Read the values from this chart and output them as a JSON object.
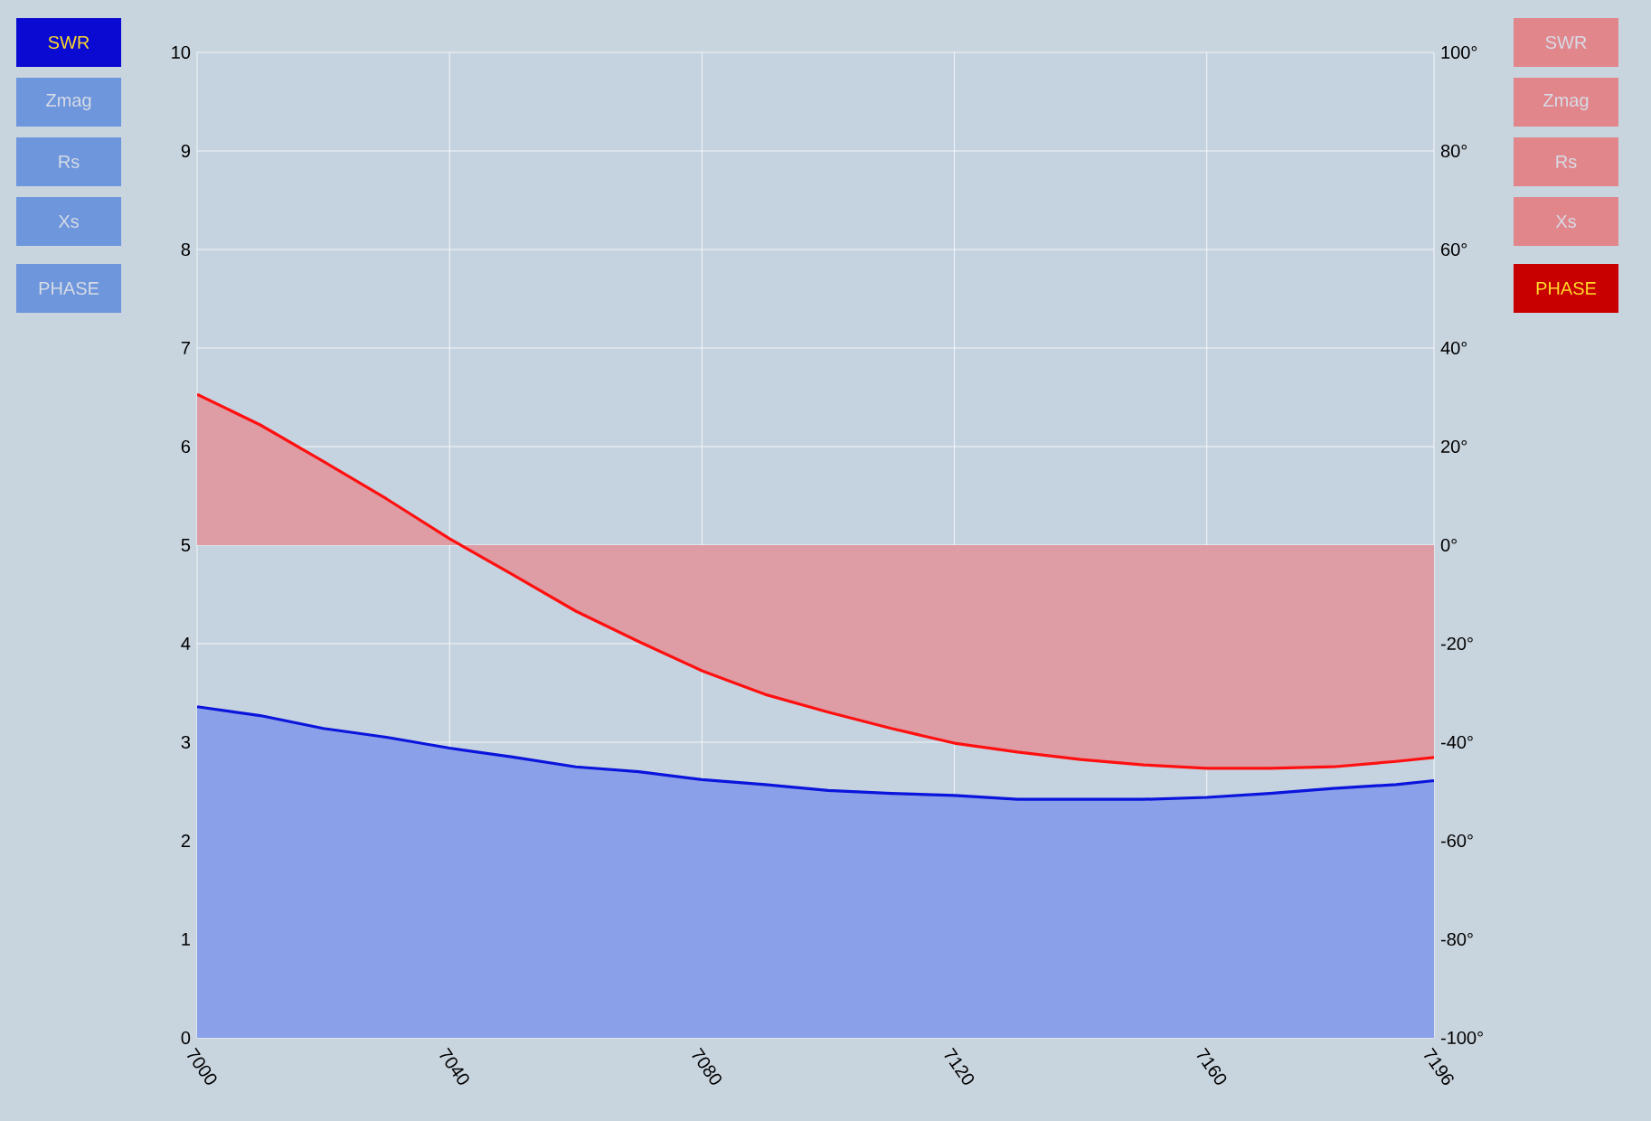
{
  "chart_data": {
    "type": "area",
    "x": [
      7000,
      7010,
      7020,
      7030,
      7040,
      7050,
      7060,
      7070,
      7080,
      7090,
      7100,
      7110,
      7120,
      7130,
      7140,
      7150,
      7160,
      7170,
      7180,
      7190,
      7196
    ],
    "series": [
      {
        "color": "#0a14dc",
        "values": [
          3.36,
          3.27,
          3.14,
          3.05,
          2.94,
          2.85,
          2.75,
          2.7,
          2.62,
          2.57,
          2.51,
          2.48,
          2.46,
          2.42,
          2.42,
          2.42,
          2.44,
          2.48,
          2.53,
          2.57,
          2.61
        ]
      },
      {
        "color": "#ff1010",
        "axis": "y2",
        "values": [
          30.6,
          24.4,
          17,
          9.4,
          1.3,
          -6,
          -13.4,
          -19.6,
          -25.5,
          -30.3,
          -33.9,
          -37.2,
          -40.2,
          -42,
          -43.5,
          -44.6,
          -45.3,
          -45.3,
          -45,
          -43.9,
          -43.1
        ]
      }
    ],
    "xlim": [
      7000,
      7196
    ],
    "xticks": [
      7000,
      7040,
      7080,
      7120,
      7160,
      7196
    ],
    "ylim": [
      0,
      10
    ],
    "yticks": [
      0,
      1,
      2,
      3,
      4,
      5,
      6,
      7,
      8,
      9,
      10
    ],
    "y2lim": [
      -100,
      100
    ],
    "y2ticks": [
      {
        "value": -100,
        "label": "-100°"
      },
      {
        "value": -80,
        "label": "-80°"
      },
      {
        "value": -60,
        "label": "-60°"
      },
      {
        "value": -40,
        "label": "-40°"
      },
      {
        "value": -20,
        "label": "-20°"
      },
      {
        "value": 0,
        "label": "0°"
      },
      {
        "value": 20,
        "label": "20°"
      },
      {
        "value": 40,
        "label": "40°"
      },
      {
        "value": 60,
        "label": "60°"
      },
      {
        "value": 80,
        "label": "80°"
      },
      {
        "value": 100,
        "label": "100°"
      }
    ],
    "grid": true,
    "annotations": [
      "SWR",
      "Zmag",
      "Rs",
      "Xs",
      "PHASE",
      "SWR",
      "Zmag",
      "Rs",
      "Xs",
      "PHASE"
    ]
  }
}
